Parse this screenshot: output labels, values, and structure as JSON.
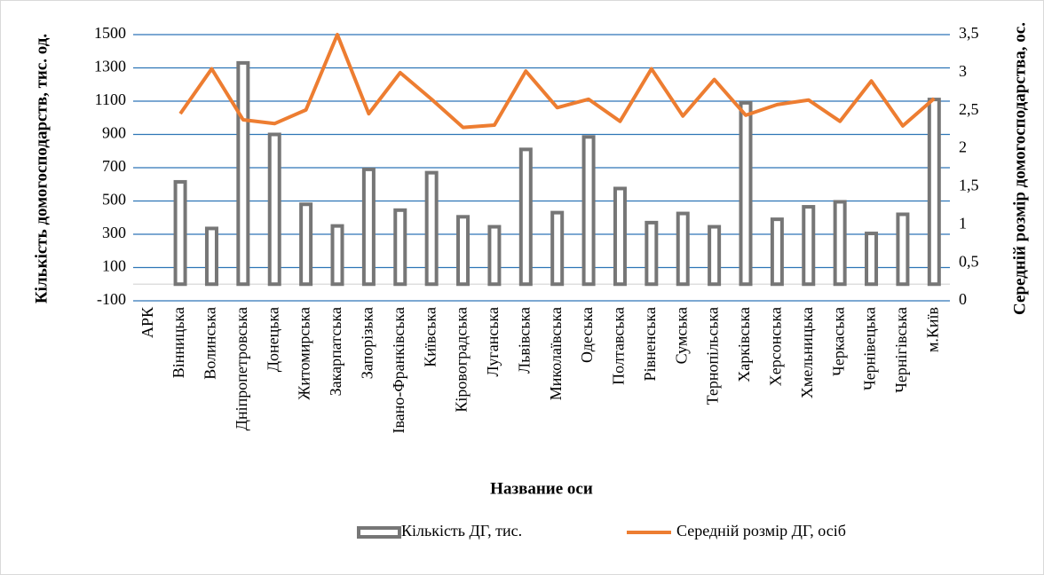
{
  "chart_data": {
    "type": "bar_line",
    "x_label": "Название оси",
    "y_label": "Кількість домогосподарств, тис. од.",
    "y2_label": "Середній розмір домогосподарства, ос.",
    "categories": [
      "АРК",
      "Вінницька",
      "Волинська",
      "Дніпропетровська",
      "Донецька",
      "Житомирська",
      "Закарпатська",
      "Запорізька",
      "Івано-Франківська",
      "Київська",
      "Кіровоградська",
      "Луганська",
      "Львівська",
      "Миколаївська",
      "Одеська",
      "Полтавська",
      "Рівненська",
      "Сумська",
      "Тернопільська",
      "Харківська",
      "Херсонська",
      "Хмельницька",
      "Черкаська",
      "Чернівецька",
      "Чернігівська",
      "м.Київ"
    ],
    "series": [
      {
        "name": "Кількість ДГ, тис.",
        "type": "bar",
        "color": "#767676",
        "values": [
          null,
          615,
          335,
          1330,
          900,
          480,
          350,
          690,
          445,
          670,
          405,
          345,
          810,
          430,
          885,
          575,
          370,
          425,
          345,
          1090,
          390,
          465,
          495,
          305,
          420,
          1110
        ]
      },
      {
        "name": "Середній розмір ДГ, осіб",
        "type": "line",
        "axis": "y2",
        "color": "#ed7d31",
        "values": [
          null,
          2.46,
          3.05,
          2.38,
          2.33,
          2.51,
          3.5,
          2.46,
          3.0,
          2.65,
          2.28,
          2.31,
          3.02,
          2.54,
          2.65,
          2.36,
          3.05,
          2.43,
          2.91,
          2.44,
          2.58,
          2.64,
          2.36,
          2.89,
          2.3,
          2.66
        ]
      }
    ],
    "ylim": [
      -100,
      1500
    ],
    "yticks": [
      -100,
      100,
      300,
      500,
      700,
      900,
      1100,
      1300,
      1500
    ],
    "y2lim": [
      0,
      3.5
    ],
    "y2ticks": [
      0,
      {
        "value": 0.5,
        "label": "0,5"
      },
      1,
      {
        "value": 1.5,
        "label": "1,5"
      },
      2,
      {
        "value": 2.5,
        "label": "2,5"
      },
      3,
      {
        "value": 3.5,
        "label": "3,5"
      }
    ],
    "grid": true,
    "grid_color": "#2e75b6",
    "legend": "bottom"
  }
}
